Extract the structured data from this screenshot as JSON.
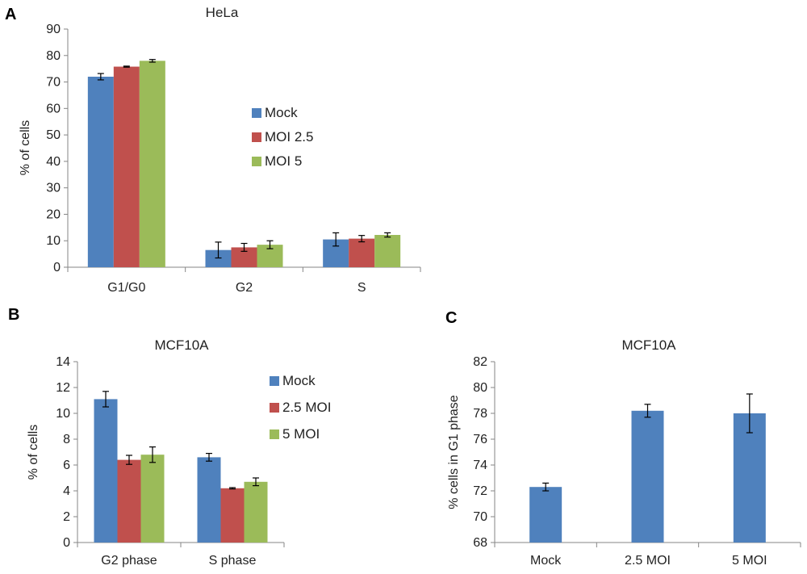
{
  "panels": {
    "a": "A",
    "b": "B",
    "c": "C"
  },
  "colors": {
    "series1": "#4f81bd",
    "series2": "#c0504d",
    "series3": "#9bbb59",
    "axis": "#868686",
    "error": "#000000"
  },
  "chart_data": [
    {
      "id": "A",
      "type": "bar",
      "title": "HeLa",
      "xlabel": "",
      "ylabel": "% of cells",
      "ylim": [
        0,
        90
      ],
      "yticks": [
        0,
        10,
        20,
        30,
        40,
        50,
        60,
        70,
        80,
        90
      ],
      "categories": [
        "G1/G0",
        "G2",
        "S"
      ],
      "series": [
        {
          "name": "Mock",
          "values": [
            72,
            6.5,
            10.5
          ],
          "errors": [
            1.2,
            3,
            2.5
          ]
        },
        {
          "name": "MOI 2.5",
          "values": [
            75.8,
            7.5,
            10.8
          ],
          "errors": [
            0.2,
            1.5,
            1.2
          ]
        },
        {
          "name": "MOI 5",
          "values": [
            78,
            8.5,
            12.2
          ],
          "errors": [
            0.5,
            1.5,
            0.8
          ]
        }
      ],
      "legend": "center"
    },
    {
      "id": "B",
      "type": "bar",
      "title": "MCF10A",
      "xlabel": "",
      "ylabel": "% of cells",
      "ylim": [
        0,
        14
      ],
      "yticks": [
        0,
        2,
        4,
        6,
        8,
        10,
        12,
        14
      ],
      "categories": [
        "G2 phase",
        "S phase"
      ],
      "series": [
        {
          "name": "Mock",
          "values": [
            11.1,
            6.6
          ],
          "errors": [
            0.6,
            0.3
          ]
        },
        {
          "name": "2.5 MOI",
          "values": [
            6.4,
            4.2
          ],
          "errors": [
            0.35,
            0.05
          ]
        },
        {
          "name": "5 MOI",
          "values": [
            6.8,
            4.7
          ],
          "errors": [
            0.6,
            0.3
          ]
        }
      ],
      "legend": "right"
    },
    {
      "id": "C",
      "type": "bar",
      "title": "MCF10A",
      "xlabel": "",
      "ylabel": "% cells in G1 phase",
      "ylim": [
        68,
        82
      ],
      "yticks": [
        68,
        70,
        72,
        74,
        76,
        78,
        80,
        82
      ],
      "categories": [
        "Mock",
        "2.5 MOI",
        "5 MOI"
      ],
      "series": [
        {
          "name": "",
          "values": [
            72.3,
            78.2,
            78
          ],
          "errors": [
            0.3,
            0.5,
            1.5
          ]
        }
      ],
      "legend": "none"
    }
  ]
}
